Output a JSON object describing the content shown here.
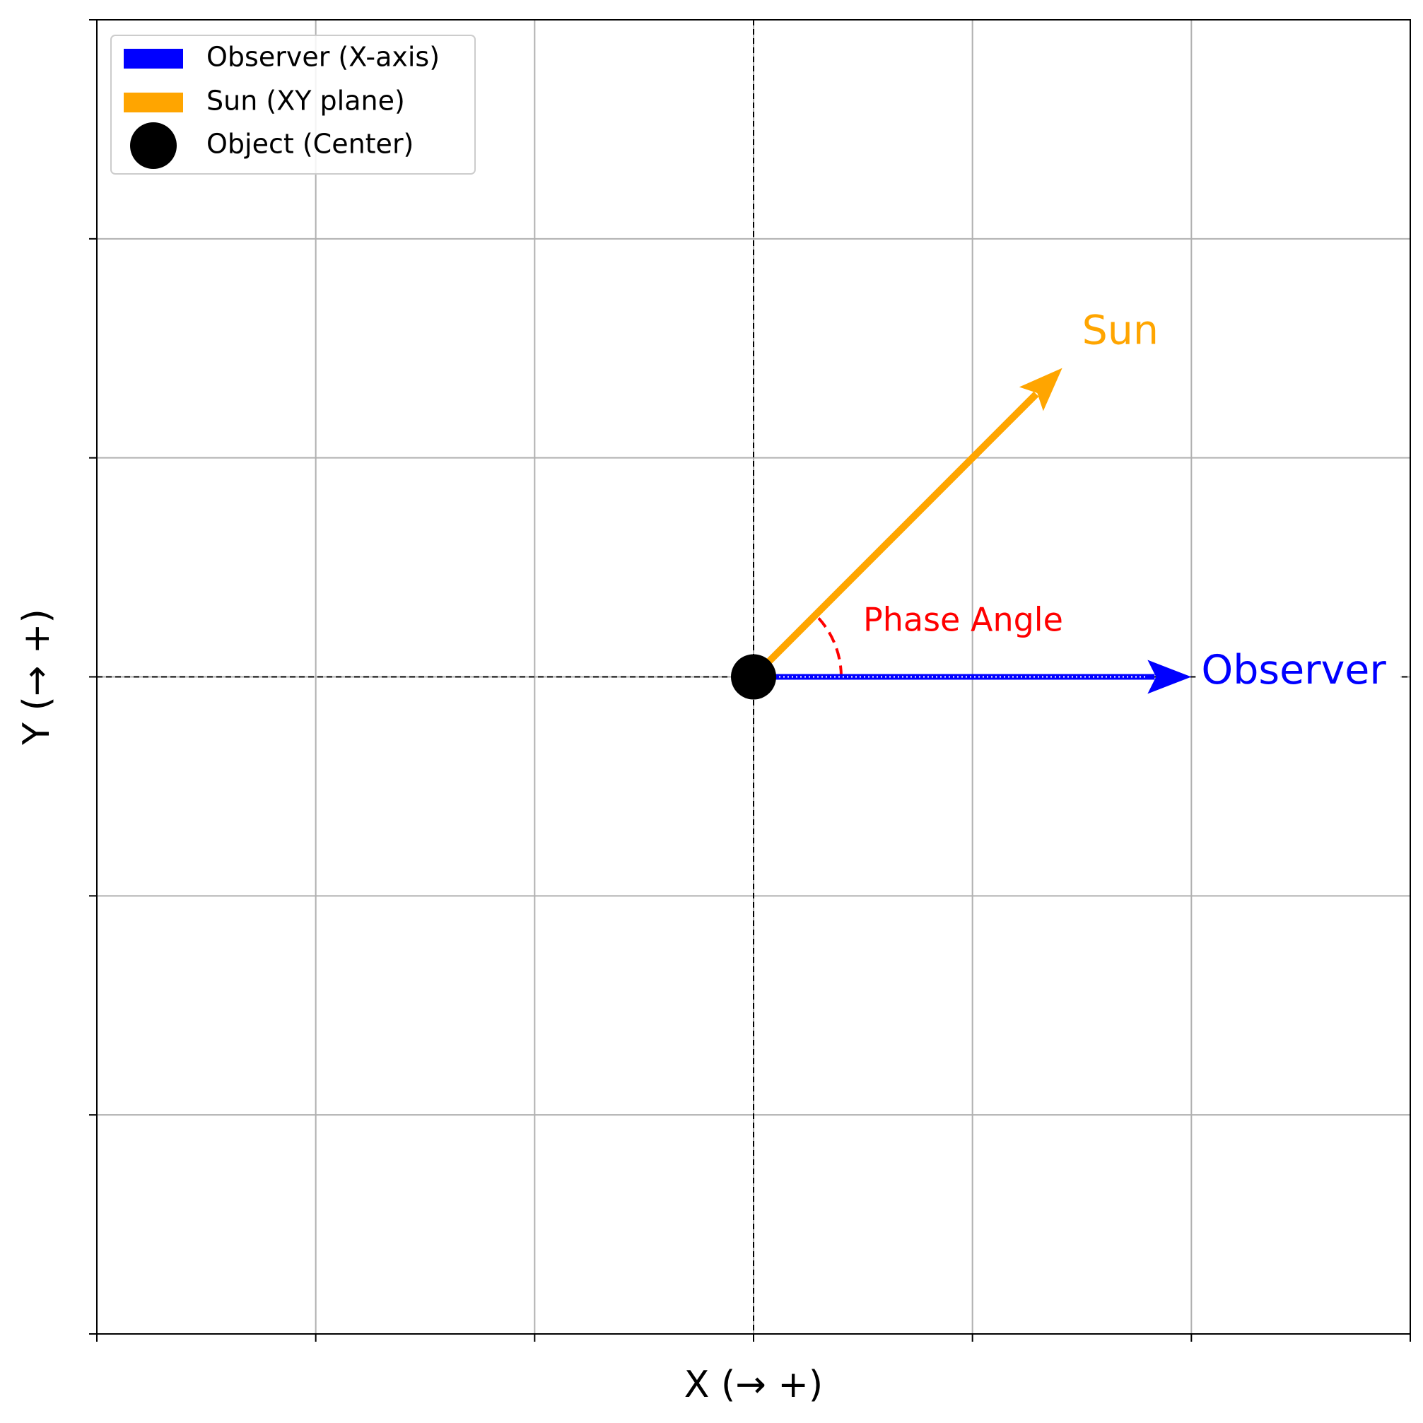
{
  "chart_data": {
    "type": "vector",
    "xlabel": "X (→ +)",
    "ylabel": "Y (→ +)",
    "xlim": [
      -3,
      3
    ],
    "ylim": [
      -3,
      3
    ],
    "xticks": [
      -3,
      -2,
      -1,
      0,
      1,
      2,
      3
    ],
    "yticks": [
      -3,
      -2,
      -1,
      0,
      1,
      2,
      3
    ],
    "grid": true,
    "legend": "upper left",
    "vectors": [
      {
        "name": "Observer (X-axis)",
        "label": "Observer",
        "color": "#0000ff",
        "x": 2,
        "y": 0
      },
      {
        "name": "Sun (XY plane)",
        "label": "Sun",
        "color": "#ffa500",
        "x": 1.41,
        "y": 1.41
      }
    ],
    "point": {
      "name": "Object (Center)",
      "color": "#000000",
      "x": 0,
      "y": 0
    },
    "annotation": {
      "text": "Phase Angle",
      "color": "#ff0000"
    }
  }
}
